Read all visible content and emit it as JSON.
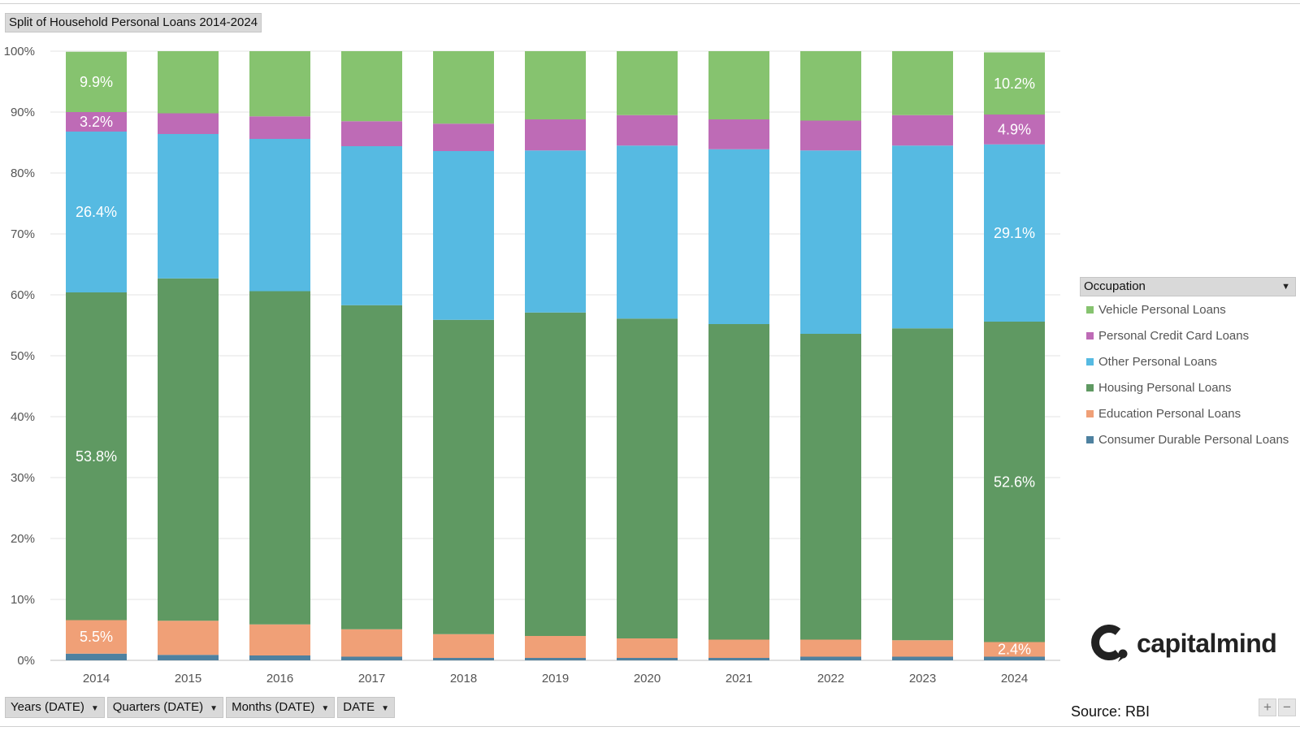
{
  "title": "Split of Household Personal Loans 2014-2024",
  "legend_title": "Occupation",
  "filters": [
    {
      "label": "Years (DATE)"
    },
    {
      "label": "Quarters (DATE)"
    },
    {
      "label": "Months (DATE)"
    },
    {
      "label": "DATE"
    }
  ],
  "brand": {
    "name": "capitalmind"
  },
  "source": "Source: RBI",
  "zoom": {
    "plus": "+",
    "minus": "−"
  },
  "chart_data": {
    "type": "bar",
    "stacked": true,
    "title": "Split of Household Personal Loans 2014-2024",
    "categories": [
      "2014",
      "2015",
      "2016",
      "2017",
      "2018",
      "2019",
      "2020",
      "2021",
      "2022",
      "2023",
      "2024"
    ],
    "ylim": [
      0,
      100
    ],
    "yticks": [
      "0%",
      "10%",
      "20%",
      "30%",
      "40%",
      "50%",
      "60%",
      "70%",
      "80%",
      "90%",
      "100%"
    ],
    "series": [
      {
        "name": "Consumer Durable Personal Loans",
        "color": "#4e81a0",
        "values": [
          1.1,
          0.9,
          0.8,
          0.6,
          0.4,
          0.4,
          0.4,
          0.4,
          0.6,
          0.6,
          0.6
        ]
      },
      {
        "name": "Education Personal Loans",
        "color": "#f0a077",
        "values": [
          5.5,
          5.6,
          5.1,
          4.5,
          3.9,
          3.6,
          3.2,
          3.0,
          2.8,
          2.7,
          2.4
        ]
      },
      {
        "name": "Housing Personal Loans",
        "color": "#5f9962",
        "values": [
          53.8,
          56.2,
          54.7,
          53.2,
          51.6,
          53.1,
          52.5,
          51.8,
          50.2,
          51.2,
          52.6
        ]
      },
      {
        "name": "Other Personal Loans",
        "color": "#56bae2",
        "values": [
          26.4,
          23.7,
          25.0,
          26.1,
          27.7,
          26.6,
          28.4,
          28.7,
          30.1,
          30.0,
          29.1
        ]
      },
      {
        "name": "Personal Credit Card Loans",
        "color": "#be6bb6",
        "values": [
          3.2,
          3.4,
          3.7,
          4.1,
          4.5,
          5.1,
          5.0,
          4.9,
          4.9,
          5.0,
          4.9
        ]
      },
      {
        "name": "Vehicle Personal Loans",
        "color": "#86c36f",
        "values": [
          9.9,
          10.2,
          10.7,
          11.5,
          11.9,
          11.2,
          10.5,
          11.2,
          11.4,
          10.5,
          10.2
        ]
      }
    ],
    "data_labels": [
      {
        "category": "2014",
        "series": "Vehicle Personal Loans",
        "text": "9.9%"
      },
      {
        "category": "2014",
        "series": "Personal Credit Card Loans",
        "text": "3.2%"
      },
      {
        "category": "2014",
        "series": "Other Personal Loans",
        "text": "26.4%"
      },
      {
        "category": "2014",
        "series": "Housing Personal Loans",
        "text": "53.8%"
      },
      {
        "category": "2014",
        "series": "Education Personal Loans",
        "text": "5.5%"
      },
      {
        "category": "2024",
        "series": "Vehicle Personal Loans",
        "text": "10.2%"
      },
      {
        "category": "2024",
        "series": "Personal Credit Card Loans",
        "text": "4.9%"
      },
      {
        "category": "2024",
        "series": "Other Personal Loans",
        "text": "29.1%"
      },
      {
        "category": "2024",
        "series": "Housing Personal Loans",
        "text": "52.6%"
      },
      {
        "category": "2024",
        "series": "Education Personal Loans",
        "text": "2.4%"
      }
    ],
    "legend_position": "right",
    "grid": true
  }
}
